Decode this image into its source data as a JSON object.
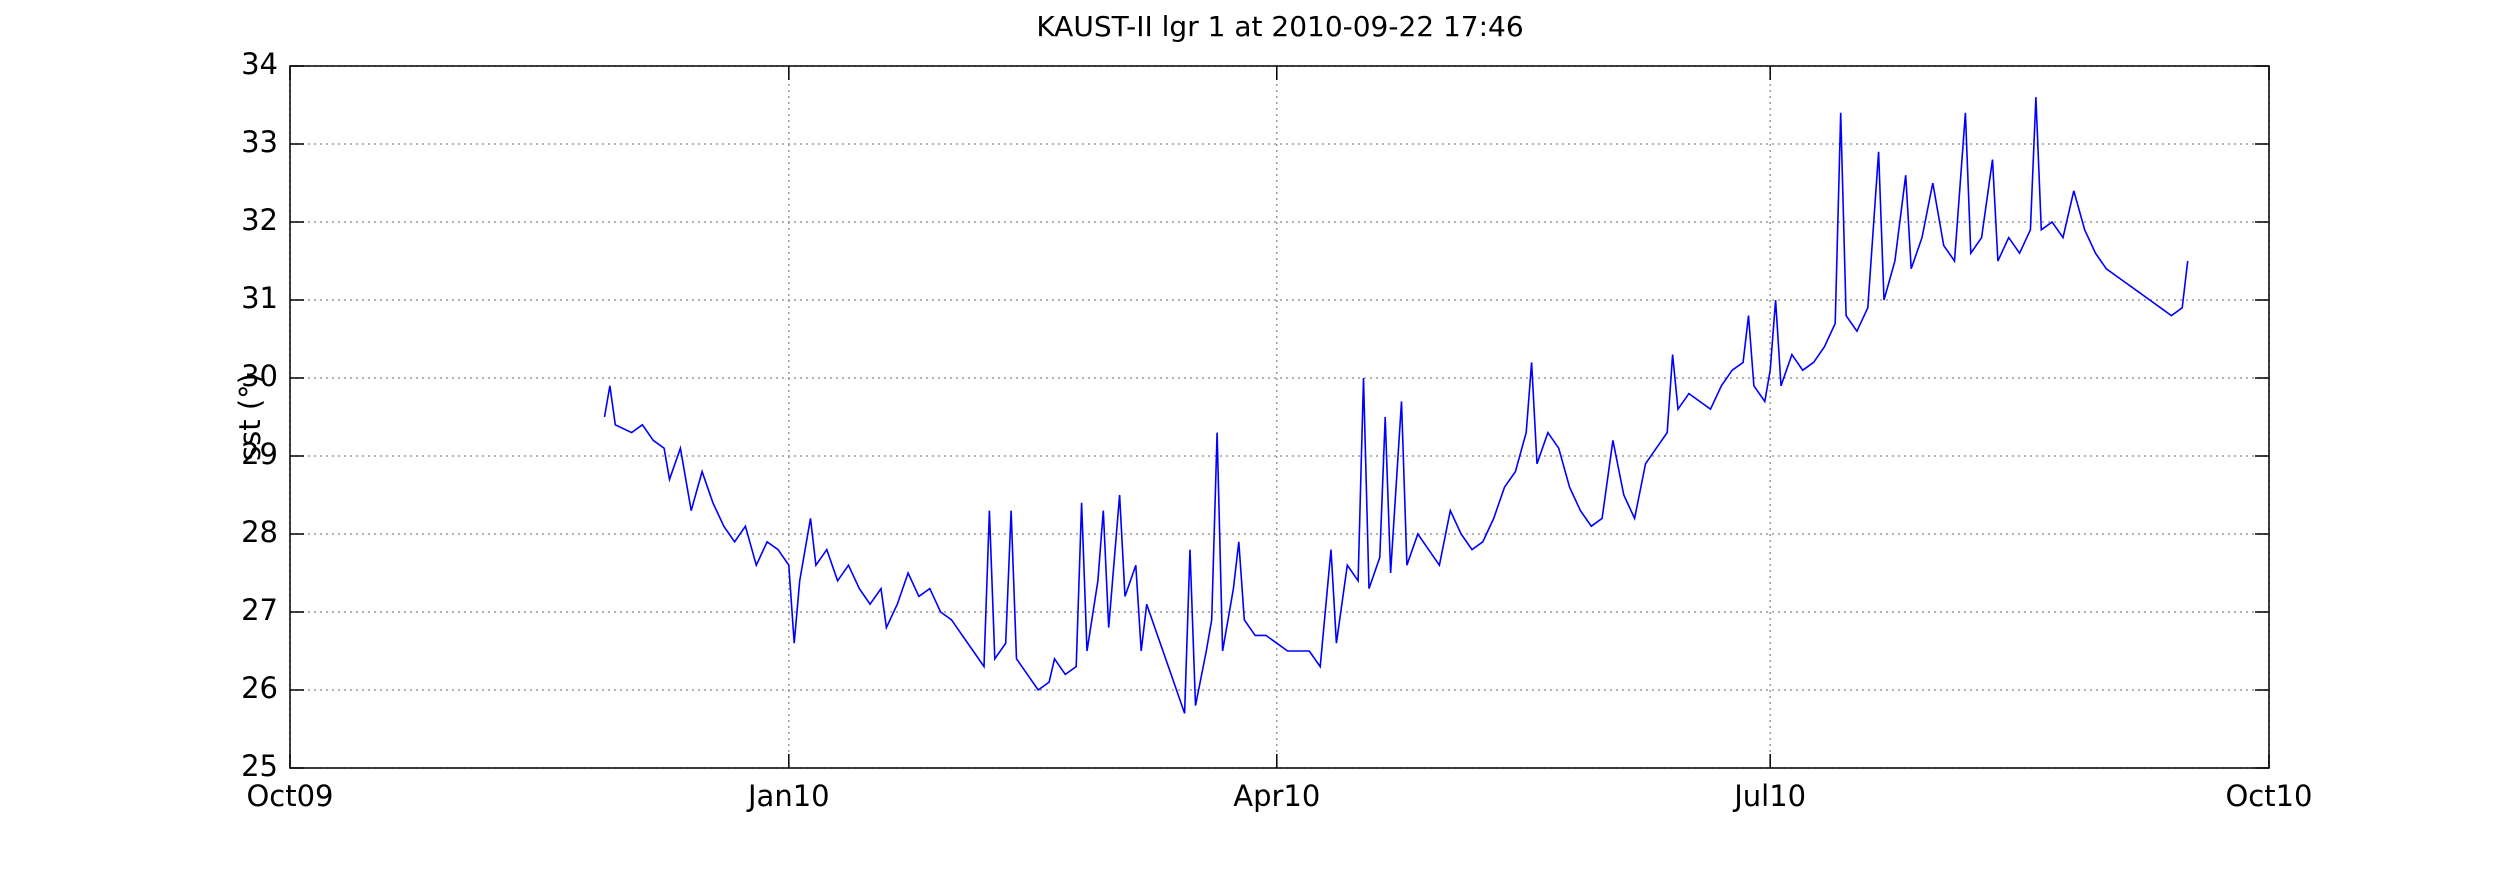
{
  "chart_data": {
    "type": "line",
    "title": "KAUST-II lgr 1 at 2010-09-22 17:46",
    "y_label": "sst (°)",
    "color": "#0000ff",
    "grid": true,
    "xlim": [
      0,
      365
    ],
    "xticks": [
      {
        "value": 0,
        "label": "Oct09"
      },
      {
        "value": 92,
        "label": "Jan10"
      },
      {
        "value": 182,
        "label": "Apr10"
      },
      {
        "value": 273,
        "label": "Jul10"
      },
      {
        "value": 365,
        "label": "Oct10"
      }
    ],
    "ylim": [
      25,
      34
    ],
    "yticks": [
      25,
      26,
      27,
      28,
      29,
      30,
      31,
      32,
      33,
      34
    ],
    "x": [
      58,
      59,
      60,
      63,
      65,
      67,
      69,
      70,
      72,
      74,
      76,
      78,
      80,
      82,
      84,
      86,
      88,
      90,
      92,
      93,
      94,
      96,
      97,
      99,
      101,
      103,
      105,
      107,
      109,
      110,
      112,
      114,
      116,
      118,
      120,
      122,
      124,
      126,
      128,
      129,
      130,
      132,
      133,
      134,
      136,
      138,
      140,
      141,
      143,
      145,
      146,
      147,
      149,
      150,
      151,
      153,
      154,
      156,
      157,
      158,
      160,
      162,
      164,
      165,
      166,
      167,
      169,
      170,
      171,
      172,
      174,
      175,
      176,
      178,
      180,
      182,
      184,
      186,
      188,
      190,
      192,
      193,
      195,
      197,
      198,
      199,
      201,
      202,
      203,
      205,
      206,
      208,
      210,
      212,
      214,
      216,
      218,
      220,
      222,
      224,
      226,
      228,
      229,
      230,
      232,
      234,
      236,
      238,
      240,
      242,
      244,
      246,
      248,
      250,
      252,
      254,
      255,
      256,
      258,
      260,
      262,
      264,
      266,
      268,
      269,
      270,
      272,
      273,
      274,
      275,
      277,
      279,
      281,
      283,
      285,
      286,
      287,
      289,
      291,
      293,
      294,
      296,
      298,
      299,
      301,
      303,
      305,
      307,
      309,
      310,
      312,
      314,
      315,
      317,
      319,
      321,
      322,
      323,
      325,
      327,
      329,
      331,
      333,
      335,
      337,
      339,
      341,
      343,
      345,
      347,
      349,
      350
    ],
    "values": [
      29.5,
      29.9,
      29.4,
      29.3,
      29.4,
      29.2,
      29.1,
      28.7,
      29.1,
      28.3,
      28.8,
      28.4,
      28.1,
      27.9,
      28.1,
      27.6,
      27.9,
      27.8,
      27.6,
      26.6,
      27.4,
      28.2,
      27.6,
      27.8,
      27.4,
      27.6,
      27.3,
      27.1,
      27.3,
      26.8,
      27.1,
      27.5,
      27.2,
      27.3,
      27.0,
      26.9,
      26.7,
      26.5,
      26.3,
      28.3,
      26.4,
      26.6,
      28.3,
      26.4,
      26.2,
      26.0,
      26.1,
      26.4,
      26.2,
      26.3,
      28.4,
      26.5,
      27.4,
      28.3,
      26.8,
      28.5,
      27.2,
      27.6,
      26.5,
      27.1,
      26.7,
      26.3,
      25.9,
      25.7,
      27.8,
      25.8,
      26.5,
      26.9,
      29.3,
      26.5,
      27.3,
      27.9,
      26.9,
      26.7,
      26.7,
      26.6,
      26.5,
      26.5,
      26.5,
      26.3,
      27.8,
      26.6,
      27.6,
      27.4,
      30.0,
      27.3,
      27.7,
      29.5,
      27.5,
      29.7,
      27.6,
      28.0,
      27.8,
      27.6,
      28.3,
      28.0,
      27.8,
      27.9,
      28.2,
      28.6,
      28.8,
      29.3,
      30.2,
      28.9,
      29.3,
      29.1,
      28.6,
      28.3,
      28.1,
      28.2,
      29.2,
      28.5,
      28.2,
      28.9,
      29.1,
      29.3,
      30.3,
      29.6,
      29.8,
      29.7,
      29.6,
      29.9,
      30.1,
      30.2,
      30.8,
      29.9,
      29.7,
      30.1,
      31.0,
      29.9,
      30.3,
      30.1,
      30.2,
      30.4,
      30.7,
      33.4,
      30.8,
      30.6,
      30.9,
      32.9,
      31.0,
      31.5,
      32.6,
      31.4,
      31.8,
      32.5,
      31.7,
      31.5,
      33.4,
      31.6,
      31.8,
      32.8,
      31.5,
      31.8,
      31.6,
      31.9,
      33.6,
      31.9,
      32.0,
      31.8,
      32.4,
      31.9,
      31.6,
      31.4,
      31.3,
      31.2,
      31.1,
      31.0,
      30.9,
      30.8,
      30.9,
      31.5
    ]
  }
}
